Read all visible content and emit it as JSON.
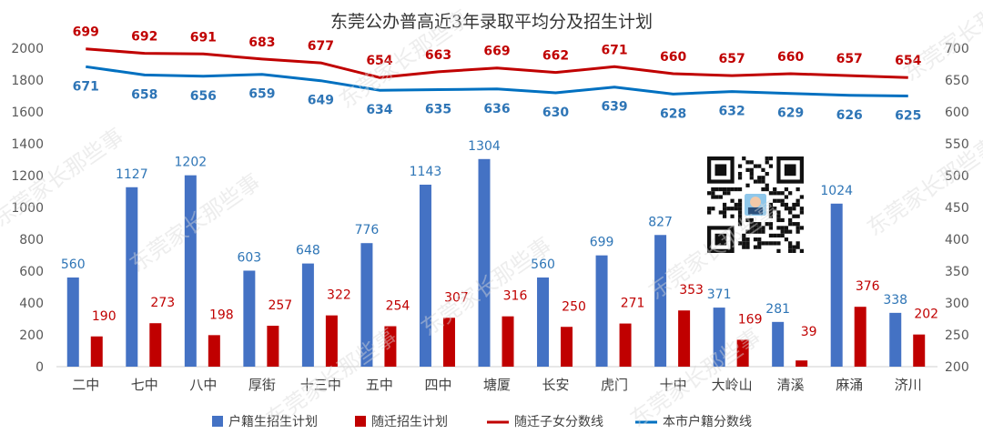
{
  "chart_data": {
    "type": "bar",
    "title": "东莞公办普高近3年录取平均分及招生计划",
    "categories": [
      "二中",
      "七中",
      "八中",
      "厚街",
      "十三中",
      "五中",
      "四中",
      "塘厦",
      "长安",
      "虎门",
      "十中",
      "大岭山",
      "清溪",
      "麻涌",
      "济川"
    ],
    "series": [
      {
        "name": "户籍生招生计划",
        "type": "bar",
        "axis": "left",
        "color": "#4472C4",
        "label_color": "#2E75B6",
        "values": [
          560,
          1127,
          1202,
          603,
          648,
          776,
          1143,
          1304,
          560,
          699,
          827,
          371,
          281,
          1024,
          338
        ]
      },
      {
        "name": "随迁招生计划",
        "type": "bar",
        "axis": "left",
        "color": "#C00000",
        "label_color": "#C00000",
        "values": [
          190,
          273,
          198,
          257,
          322,
          254,
          307,
          316,
          250,
          271,
          353,
          169,
          39,
          376,
          202
        ]
      },
      {
        "name": "随迁子女分数线",
        "type": "line",
        "axis": "right",
        "color": "#C00000",
        "values": [
          699,
          692,
          691,
          683,
          677,
          654,
          663,
          669,
          662,
          671,
          660,
          657,
          660,
          657,
          654
        ]
      },
      {
        "name": "本市户籍分数线",
        "type": "line",
        "axis": "right",
        "color": "#0070C0",
        "values": [
          671,
          658,
          656,
          659,
          649,
          634,
          635,
          636,
          630,
          639,
          628,
          632,
          629,
          626,
          625
        ]
      }
    ],
    "y_left": {
      "min": 0,
      "max": 2000,
      "step": 200,
      "ticks": [
        "0",
        "200",
        "400",
        "600",
        "800",
        "1000",
        "1200",
        "1400",
        "1600",
        "1800",
        "2000"
      ]
    },
    "y_right": {
      "min": 200,
      "max": 700,
      "step": 50,
      "ticks": [
        "200",
        "250",
        "300",
        "350",
        "400",
        "450",
        "500",
        "550",
        "600",
        "650",
        "700"
      ]
    },
    "grid": false,
    "legend_position": "bottom"
  },
  "watermark": "东莞家长那些事",
  "qr_code_visible": true
}
